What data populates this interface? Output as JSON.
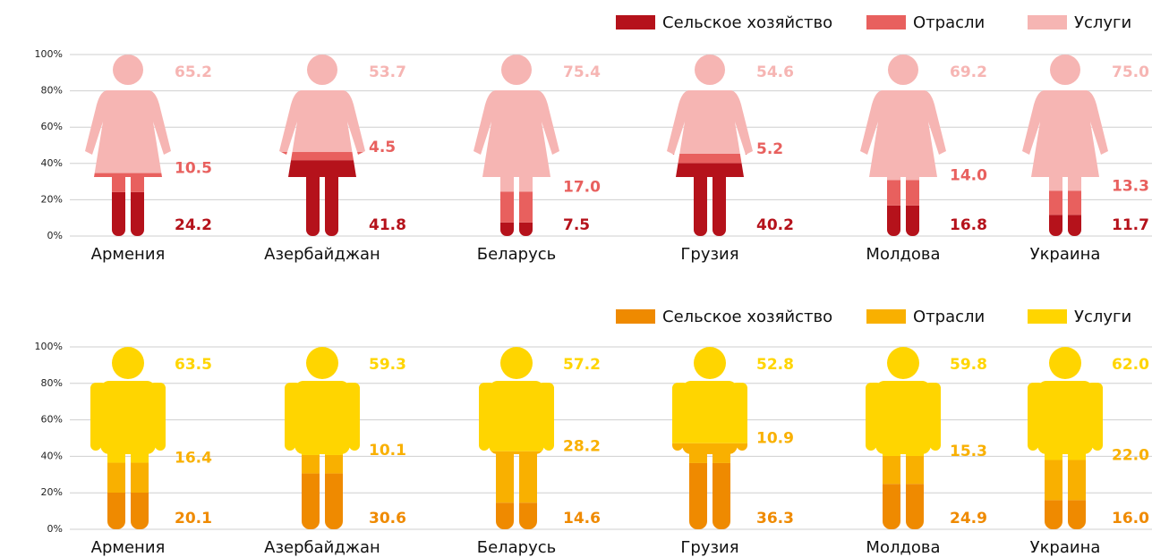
{
  "chart_data": [
    {
      "type": "pictogram",
      "figure": "woman",
      "categories": [
        "Армения",
        "Азербайджан",
        "Беларусь",
        "Грузия",
        "Молдова",
        "Украина"
      ],
      "series": [
        {
          "name": "Сельское хозяйство",
          "color": "#b5121b",
          "values": [
            24.2,
            41.8,
            7.5,
            40.2,
            16.8,
            11.7
          ],
          "value_labels": [
            "24.2",
            "41.8",
            "7.5",
            "40.2",
            "16.8",
            "11.7"
          ]
        },
        {
          "name": "Отрасли",
          "color": "#e8605e",
          "values": [
            10.5,
            4.5,
            17.0,
            5.2,
            14.0,
            13.3
          ],
          "value_labels": [
            "10.5",
            "4.5",
            "17.0",
            "5.2",
            "14.0",
            "13.3"
          ]
        },
        {
          "name": "Услуги",
          "color": "#f6b5b3",
          "values": [
            65.2,
            53.7,
            75.4,
            54.6,
            69.2,
            75.0
          ],
          "value_labels": [
            "65.2",
            "53.7",
            "75.4",
            "54.6",
            "69.2",
            "75.0"
          ]
        }
      ],
      "ylim": [
        0,
        100
      ],
      "yticks": [
        {
          "value": 0,
          "label": "0%"
        },
        {
          "value": 20,
          "label": "20%"
        },
        {
          "value": 40,
          "label": "40%"
        },
        {
          "value": 60,
          "label": "60%"
        },
        {
          "value": 80,
          "label": "80%"
        },
        {
          "value": 100,
          "label": "100%"
        }
      ],
      "grid": true,
      "legend": "top-right"
    },
    {
      "type": "pictogram",
      "figure": "man",
      "categories": [
        "Армения",
        "Азербайджан",
        "Беларусь",
        "Грузия",
        "Молдова",
        "Украина"
      ],
      "series": [
        {
          "name": "Сельское хозяйство",
          "color": "#ef8a00",
          "values": [
            20.1,
            30.6,
            14.6,
            36.3,
            24.9,
            16.0
          ],
          "value_labels": [
            "20.1",
            "30.6",
            "14.6",
            "36.3",
            "24.9",
            "16.0"
          ]
        },
        {
          "name": "Отрасли",
          "color": "#f9b000",
          "values": [
            16.4,
            10.1,
            28.2,
            10.9,
            15.3,
            22.0
          ],
          "value_labels": [
            "16.4",
            "10.1",
            "28.2",
            "10.9",
            "15.3",
            "22.0"
          ]
        },
        {
          "name": "Услуги",
          "color": "#ffd500",
          "values": [
            63.5,
            59.3,
            57.2,
            52.8,
            59.8,
            62.0
          ],
          "value_labels": [
            "63.5",
            "59.3",
            "57.2",
            "52.8",
            "59.8",
            "62.0"
          ]
        }
      ],
      "ylim": [
        0,
        100
      ],
      "yticks": [
        {
          "value": 0,
          "label": "0%"
        },
        {
          "value": 20,
          "label": "20%"
        },
        {
          "value": 40,
          "label": "40%"
        },
        {
          "value": 60,
          "label": "60%"
        },
        {
          "value": 80,
          "label": "80%"
        },
        {
          "value": 100,
          "label": "100%"
        }
      ],
      "grid": true,
      "legend": "top-right"
    }
  ]
}
